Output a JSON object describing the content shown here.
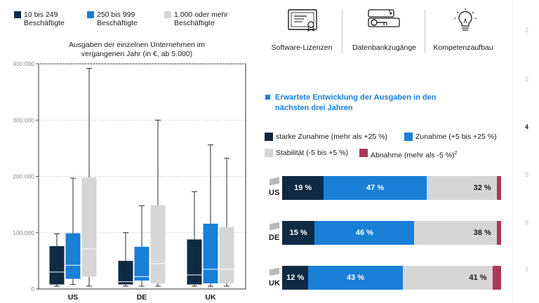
{
  "legend": [
    {
      "label_line1": "10 bis 249",
      "label_line2": "Beschäftigte",
      "color": "#0f2a44"
    },
    {
      "label_line1": "250 bis 999",
      "label_line2": "Beschäftigte",
      "color": "#1a7fd6"
    },
    {
      "label_line1": "1.000 oder mehr",
      "label_line2": "Beschäftigte",
      "color": "#d6d6d6"
    }
  ],
  "categories_top": [
    {
      "label": "Software-Lizenzen",
      "icon": "certificate-icon"
    },
    {
      "label": "Datenbankzugänge",
      "icon": "database-key-icon"
    },
    {
      "label": "Kompetenzaufbau",
      "icon": "lightbulb-icon"
    }
  ],
  "development": {
    "title_line1": "Erwartete Entwicklung der Ausgaben in den",
    "title_line2": "nächsten drei Jahren",
    "legend": [
      {
        "label": "starke Zunahme (mehr als +25 %)",
        "color": "#0f2a44"
      },
      {
        "label": "Zunahme (+5 bis +25 %)",
        "color": "#1a7fd6"
      },
      {
        "label": "Stabilität (-5 bis +5 %)",
        "color": "#d6d6d6"
      },
      {
        "label": "Abnahme (mehr als -5 %)",
        "sup": "2",
        "color": "#a83a5a"
      }
    ]
  },
  "page_numbers": [
    "2",
    "3",
    "4",
    "5",
    "6",
    "7"
  ],
  "chart_data": [
    {
      "type": "boxplot",
      "title_line1": "Ausgaben der einzelnen Unternehmen im",
      "title_line2": "vergangenen Jahr (in €, ab 5.000)",
      "ylim": [
        0,
        400000
      ],
      "yticks": [
        0,
        100000,
        200000,
        300000,
        400000
      ],
      "ytick_labels": [
        "0",
        "100.000",
        "200.000",
        "300.000",
        "400.000"
      ],
      "categories": [
        "US",
        "DE",
        "UK"
      ],
      "series": [
        {
          "name": "10 bis 249 Beschäftigte",
          "color": "#0f2a44",
          "boxes": [
            {
              "whisker_low": 5000,
              "q1": 8000,
              "median": 30000,
              "q3": 76000,
              "whisker_high": 98000
            },
            {
              "whisker_low": 5000,
              "q1": 8000,
              "median": 13000,
              "q3": 50000,
              "whisker_high": 100000
            },
            {
              "whisker_low": 5000,
              "q1": 8000,
              "median": 25000,
              "q3": 88000,
              "whisker_high": 173000
            }
          ]
        },
        {
          "name": "250 bis 999 Beschäftigte",
          "color": "#1a7fd6",
          "boxes": [
            {
              "whisker_low": 8000,
              "q1": 18000,
              "median": 42000,
              "q3": 99000,
              "whisker_high": 197000
            },
            {
              "whisker_low": 5000,
              "q1": 15000,
              "median": 22000,
              "q3": 75000,
              "whisker_high": 148000
            },
            {
              "whisker_low": 5000,
              "q1": 10000,
              "median": 35000,
              "q3": 116000,
              "whisker_high": 256000
            }
          ]
        },
        {
          "name": "1.000 oder mehr Beschäftigte",
          "color": "#d6d6d6",
          "boxes": [
            {
              "whisker_low": 5000,
              "q1": 22000,
              "median": 71000,
              "q3": 198000,
              "whisker_high": 392000
            },
            {
              "whisker_low": 5000,
              "q1": 10000,
              "median": 45000,
              "q3": 149000,
              "whisker_high": 300000
            },
            {
              "whisker_low": 5000,
              "q1": 10000,
              "median": 35000,
              "q3": 110000,
              "whisker_high": 232000
            }
          ]
        }
      ]
    },
    {
      "type": "bar",
      "stacked": true,
      "orientation": "horizontal",
      "categories": [
        "US",
        "DE",
        "UK"
      ],
      "series": [
        {
          "name": "starke Zunahme (mehr als +25 %)",
          "color": "#0f2a44",
          "values": [
            19,
            15,
            12
          ],
          "labels": [
            "19 %",
            "15 %",
            "12 %"
          ]
        },
        {
          "name": "Zunahme (+5 bis +25 %)",
          "color": "#1a7fd6",
          "values": [
            47,
            46,
            43
          ],
          "labels": [
            "47 %",
            "46 %",
            "43 %"
          ]
        },
        {
          "name": "Stabilität (-5 bis +5 %)",
          "color": "#d6d6d6",
          "values": [
            32,
            38,
            41
          ],
          "labels": [
            "32 %",
            "38 %",
            "41 %"
          ]
        },
        {
          "name": "Abnahme (mehr als -5 %)",
          "color": "#a83a5a",
          "values": [
            2,
            2,
            4
          ],
          "labels": [
            "",
            "",
            ""
          ]
        }
      ]
    }
  ]
}
